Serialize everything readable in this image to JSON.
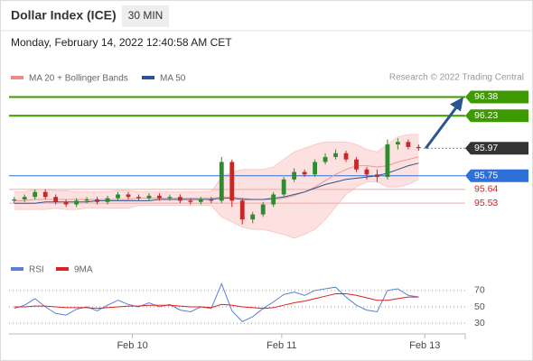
{
  "header": {
    "title": "Dollar Index (ICE)",
    "timeframe": "30 MIN",
    "timestamp": "Monday, February 14, 2022 12:40:58 AM CET"
  },
  "credit": "Research © 2022 Trading Central",
  "chart_data": [
    {
      "type": "candlestick",
      "xlim": [
        -0.5,
        43.5
      ],
      "ylim": [
        95.17,
        96.47
      ],
      "open": [
        95.55,
        95.56,
        95.58,
        95.62,
        95.58,
        95.54,
        95.52,
        95.55,
        95.56,
        95.54,
        95.57,
        95.6,
        95.58,
        95.57,
        95.59,
        95.57,
        95.58,
        95.55,
        95.54,
        95.56,
        95.55,
        95.86,
        95.55,
        95.4,
        95.44,
        95.52,
        95.6,
        95.72,
        95.78,
        95.76,
        95.86,
        95.9,
        95.93,
        95.88,
        95.8,
        95.76,
        95.74,
        96.0,
        96.02,
        95.98
      ],
      "high": [
        95.58,
        95.6,
        95.64,
        95.64,
        95.6,
        95.56,
        95.57,
        95.58,
        95.58,
        95.59,
        95.62,
        95.62,
        95.6,
        95.61,
        95.61,
        95.6,
        95.6,
        95.57,
        95.58,
        95.58,
        95.9,
        95.88,
        95.57,
        95.46,
        95.54,
        95.62,
        95.74,
        95.81,
        95.8,
        95.88,
        95.93,
        95.96,
        95.95,
        95.9,
        95.82,
        95.8,
        96.04,
        96.05,
        96.04,
        96.0
      ],
      "low": [
        95.53,
        95.54,
        95.56,
        95.56,
        95.52,
        95.5,
        95.5,
        95.53,
        95.52,
        95.52,
        95.55,
        95.56,
        95.55,
        95.55,
        95.55,
        95.55,
        95.53,
        95.52,
        95.52,
        95.53,
        95.53,
        95.5,
        95.36,
        95.37,
        95.42,
        95.5,
        95.58,
        95.7,
        95.74,
        95.74,
        95.84,
        95.88,
        95.86,
        95.78,
        95.72,
        95.7,
        95.72,
        95.96,
        95.96,
        95.95
      ],
      "close": [
        95.56,
        95.58,
        95.62,
        95.58,
        95.54,
        95.52,
        95.55,
        95.56,
        95.54,
        95.57,
        95.6,
        95.58,
        95.57,
        95.59,
        95.57,
        95.58,
        95.55,
        95.54,
        95.56,
        95.55,
        95.86,
        95.55,
        95.4,
        95.44,
        95.52,
        95.6,
        95.72,
        95.78,
        95.76,
        95.86,
        95.9,
        95.93,
        95.88,
        95.8,
        95.76,
        95.74,
        96.0,
        96.02,
        95.98,
        95.97
      ],
      "series": [
        {
          "name": "MA 20 + Bollinger Bands",
          "color": "#f08a8a",
          "values": [
            95.55,
            95.55,
            95.56,
            95.56,
            95.56,
            95.56,
            95.56,
            95.56,
            95.56,
            95.56,
            95.56,
            95.56,
            95.57,
            95.57,
            95.57,
            95.57,
            95.57,
            95.57,
            95.57,
            95.57,
            95.58,
            95.58,
            95.57,
            95.56,
            95.56,
            95.56,
            95.57,
            95.59,
            95.62,
            95.66,
            95.71,
            95.76,
            95.8,
            95.83,
            95.83,
            95.82,
            95.83,
            95.86,
            95.88,
            95.9
          ],
          "upper": [
            95.62,
            95.62,
            95.64,
            95.64,
            95.63,
            95.63,
            95.62,
            95.62,
            95.62,
            95.62,
            95.63,
            95.63,
            95.62,
            95.62,
            95.62,
            95.62,
            95.62,
            95.62,
            95.62,
            95.62,
            95.74,
            95.78,
            95.8,
            95.8,
            95.8,
            95.82,
            95.88,
            95.94,
            95.97,
            96.0,
            96.02,
            96.02,
            96.02,
            96.0,
            95.96,
            95.94,
            96.0,
            96.06,
            96.08,
            96.08
          ],
          "lower": [
            95.48,
            95.48,
            95.48,
            95.48,
            95.49,
            95.48,
            95.48,
            95.49,
            95.49,
            95.49,
            95.49,
            95.49,
            95.51,
            95.51,
            95.51,
            95.51,
            95.51,
            95.51,
            95.51,
            95.51,
            95.42,
            95.38,
            95.34,
            95.32,
            95.32,
            95.3,
            95.28,
            95.25,
            95.28,
            95.32,
            95.4,
            95.5,
            95.6,
            95.66,
            95.7,
            95.7,
            95.66,
            95.66,
            95.68,
            95.72
          ]
        },
        {
          "name": "MA 50",
          "color": "#2a5590",
          "values": [
            95.53,
            95.53,
            95.53,
            95.54,
            95.54,
            95.54,
            95.54,
            95.54,
            95.55,
            95.55,
            95.55,
            95.55,
            95.55,
            95.55,
            95.56,
            95.56,
            95.56,
            95.56,
            95.56,
            95.56,
            95.57,
            95.57,
            95.56,
            95.56,
            95.56,
            95.57,
            95.58,
            95.6,
            95.62,
            95.65,
            95.68,
            95.7,
            95.72,
            95.73,
            95.74,
            95.75,
            95.77,
            95.8,
            95.83,
            95.85
          ]
        }
      ],
      "levels": [
        {
          "value": 96.38,
          "color": "#3d9a00",
          "style": "box"
        },
        {
          "value": 96.23,
          "color": "#3d9a00",
          "style": "box"
        },
        {
          "value": 95.97,
          "color": "#333333",
          "style": "current"
        },
        {
          "value": 95.75,
          "color": "#2f6fd8",
          "style": "box"
        },
        {
          "value": 95.64,
          "color": "#d42020",
          "style": "text"
        },
        {
          "value": 95.53,
          "color": "#d42020",
          "style": "text"
        }
      ]
    },
    {
      "type": "line",
      "xlim": [
        -0.5,
        43.5
      ],
      "ylim": [
        17,
        83
      ],
      "yticks": [
        30,
        50,
        70
      ],
      "xticks": [
        {
          "value": 11.4,
          "label": "Feb 10"
        },
        {
          "value": 25.8,
          "label": "Feb 11"
        },
        {
          "value": 39.6,
          "label": "Feb 13"
        }
      ],
      "series": [
        {
          "name": "RSI",
          "color": "#5b7fd6",
          "values": [
            48,
            52,
            60,
            50,
            42,
            40,
            47,
            50,
            45,
            52,
            58,
            53,
            50,
            55,
            50,
            53,
            46,
            44,
            50,
            48,
            78,
            45,
            32,
            38,
            48,
            56,
            65,
            68,
            64,
            70,
            72,
            74,
            62,
            52,
            46,
            44,
            70,
            72,
            64,
            62
          ]
        },
        {
          "name": "9MA",
          "color": "#e02020",
          "values": [
            50,
            50,
            51,
            51,
            50,
            49,
            49,
            49,
            48,
            49,
            50,
            51,
            51,
            52,
            52,
            52,
            51,
            50,
            50,
            49,
            53,
            52,
            50,
            49,
            48,
            49,
            52,
            55,
            57,
            60,
            63,
            66,
            66,
            64,
            61,
            58,
            58,
            60,
            62,
            62
          ]
        }
      ]
    }
  ]
}
